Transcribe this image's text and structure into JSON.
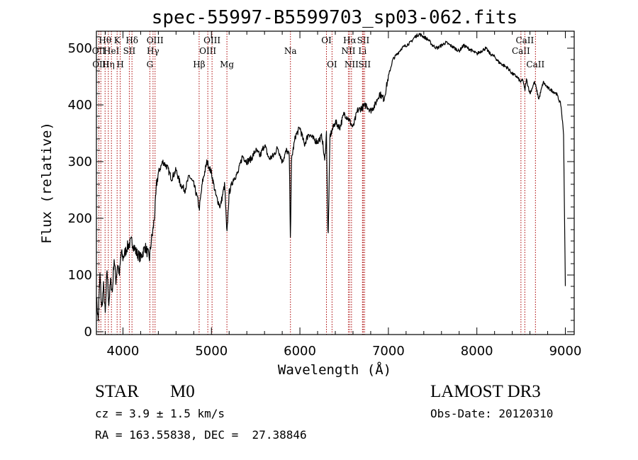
{
  "chart_data": {
    "type": "line",
    "title": "spec-55997-B5599703_sp03-062.fits",
    "xlabel": "Wavelength (Å)",
    "ylabel": "Flux (relative)",
    "xlim": [
      3700,
      9100
    ],
    "ylim": [
      -5,
      530
    ],
    "x_ticks": [
      4000,
      5000,
      6000,
      7000,
      8000,
      9000
    ],
    "y_ticks": [
      0,
      100,
      200,
      300,
      400,
      500
    ],
    "line_color": "#000000",
    "marker_color": "#aa0000",
    "series": [
      {
        "name": "flux",
        "x": [
          3700,
          3720,
          3740,
          3760,
          3780,
          3800,
          3820,
          3840,
          3860,
          3880,
          3900,
          3920,
          3940,
          3960,
          3980,
          4000,
          4050,
          4100,
          4150,
          4200,
          4250,
          4300,
          4320,
          4340,
          4360,
          4380,
          4400,
          4450,
          4500,
          4550,
          4600,
          4650,
          4700,
          4750,
          4800,
          4850,
          4861,
          4900,
          4950,
          5000,
          5050,
          5100,
          5150,
          5175,
          5200,
          5250,
          5300,
          5350,
          5400,
          5450,
          5500,
          5550,
          5600,
          5650,
          5700,
          5750,
          5800,
          5850,
          5880,
          5893,
          5905,
          5950,
          6000,
          6050,
          6100,
          6150,
          6200,
          6250,
          6280,
          6300,
          6318,
          6340,
          6400,
          6450,
          6500,
          6550,
          6600,
          6650,
          6700,
          6750,
          6800,
          6850,
          6900,
          6950,
          7000,
          7050,
          7100,
          7150,
          7200,
          7250,
          7300,
          7350,
          7400,
          7450,
          7500,
          7550,
          7600,
          7650,
          7700,
          7750,
          7800,
          7850,
          7900,
          7950,
          8000,
          8050,
          8100,
          8150,
          8200,
          8250,
          8300,
          8350,
          8400,
          8450,
          8498,
          8520,
          8542,
          8560,
          8600,
          8650,
          8662,
          8700,
          8750,
          8800,
          8850,
          8900,
          8950,
          8980,
          9000
        ],
        "y": [
          60,
          20,
          100,
          40,
          80,
          30,
          110,
          50,
          90,
          70,
          130,
          90,
          120,
          100,
          140,
          130,
          150,
          160,
          140,
          130,
          150,
          130,
          160,
          180,
          210,
          260,
          280,
          300,
          290,
          270,
          285,
          260,
          250,
          275,
          260,
          230,
          215,
          265,
          300,
          280,
          240,
          220,
          260,
          170,
          245,
          270,
          280,
          310,
          300,
          305,
          320,
          310,
          330,
          305,
          310,
          325,
          300,
          320,
          310,
          160,
          305,
          345,
          360,
          330,
          350,
          340,
          335,
          345,
          300,
          350,
          155,
          345,
          370,
          360,
          385,
          375,
          360,
          390,
          395,
          400,
          390,
          400,
          420,
          410,
          450,
          480,
          490,
          500,
          505,
          510,
          520,
          525,
          520,
          515,
          505,
          500,
          505,
          510,
          505,
          500,
          495,
          505,
          500,
          495,
          490,
          495,
          500,
          490,
          485,
          475,
          470,
          465,
          455,
          450,
          440,
          445,
          425,
          445,
          420,
          440,
          435,
          410,
          440,
          430,
          425,
          420,
          400,
          350,
          80
        ]
      }
    ],
    "line_markers": [
      {
        "x": 3727,
        "label": "OII",
        "row": 2
      },
      {
        "x": 3750,
        "label": "OIII",
        "row": 3
      },
      {
        "x": 3798,
        "label": "Hθ",
        "row": 1
      },
      {
        "x": 3835,
        "label": "Hη",
        "row": 3
      },
      {
        "x": 3870,
        "label": "HeI",
        "row": 2
      },
      {
        "x": 3934,
        "label": "K",
        "row": 1
      },
      {
        "x": 3969,
        "label": "H",
        "row": 3
      },
      {
        "x": 4072,
        "label": "SII",
        "row": 2
      },
      {
        "x": 4102,
        "label": "Hδ",
        "row": 1
      },
      {
        "x": 4304,
        "label": "G",
        "row": 3
      },
      {
        "x": 4340,
        "label": "Hγ",
        "row": 2
      },
      {
        "x": 4363,
        "label": "OIII",
        "row": 1
      },
      {
        "x": 4861,
        "label": "Hβ",
        "row": 3
      },
      {
        "x": 4959,
        "label": "OIII",
        "row": 2
      },
      {
        "x": 5007,
        "label": "OIII",
        "row": 1
      },
      {
        "x": 5175,
        "label": "Mg",
        "row": 3
      },
      {
        "x": 5893,
        "label": "Na",
        "row": 2
      },
      {
        "x": 6300,
        "label": "OI",
        "row": 1
      },
      {
        "x": 6363,
        "label": "OI",
        "row": 3
      },
      {
        "x": 6548,
        "label": "NII",
        "row": 2
      },
      {
        "x": 6563,
        "label": "Hα",
        "row": 1
      },
      {
        "x": 6583,
        "label": "NII",
        "row": 3
      },
      {
        "x": 6707,
        "label": "Li",
        "row": 2
      },
      {
        "x": 6716,
        "label": "SII",
        "row": 1
      },
      {
        "x": 6731,
        "label": "SII",
        "row": 3
      },
      {
        "x": 8498,
        "label": "CaII",
        "row": 2
      },
      {
        "x": 8542,
        "label": "CaII",
        "row": 1
      },
      {
        "x": 8662,
        "label": "CaII",
        "row": 3
      }
    ]
  },
  "info": {
    "object_type": "STAR",
    "subclass": "M0",
    "survey": "LAMOST DR3",
    "redshift": "cz = 3.9 ± 1.5 km/s",
    "obs_date": "Obs-Date: 20120310",
    "coords": "RA = 163.55838, DEC =  27.38846"
  }
}
